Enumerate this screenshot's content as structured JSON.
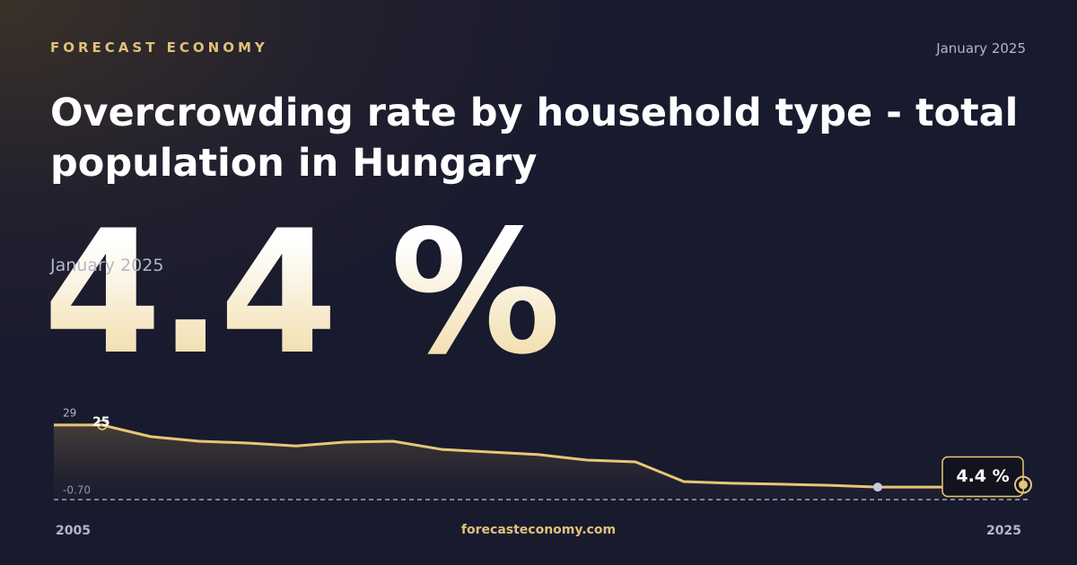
{
  "brand": "FORECAST ECONOMY",
  "date": "January 2025",
  "headline": {
    "value": "4.4 %",
    "date": "January 2025"
  },
  "footer": "forecasteconomy.com",
  "chart_data": {
    "type": "area-line",
    "title": "Overcrowding rate by household type - total population in Hungary",
    "x": [
      2005,
      2006,
      2007,
      2008,
      2009,
      2010,
      2011,
      2012,
      2013,
      2014,
      2015,
      2016,
      2017,
      2018,
      2019,
      2020,
      2021,
      2022,
      2023,
      2024,
      2025
    ],
    "values": [
      25,
      25,
      21,
      19.4,
      18.8,
      17.8,
      19.1,
      19.4,
      16.6,
      15.7,
      14.8,
      12.9,
      12.3,
      5.5,
      4.9,
      4.6,
      4.2,
      3.6,
      3.6,
      3.6,
      4.4
    ],
    "value_labels": [
      null,
      "25",
      null,
      null,
      null,
      null,
      null,
      null,
      null,
      null,
      null,
      null,
      null,
      null,
      null,
      null,
      null,
      null,
      null,
      null,
      "4.4 %"
    ],
    "color": "#e8c677",
    "xlim": [
      2005,
      2025
    ],
    "xticks": [
      2005,
      2025
    ],
    "ylim": [
      -0.7,
      29
    ],
    "yticks": [
      29,
      {
        "value": -0.7,
        "label": "-0.70"
      }
    ]
  }
}
